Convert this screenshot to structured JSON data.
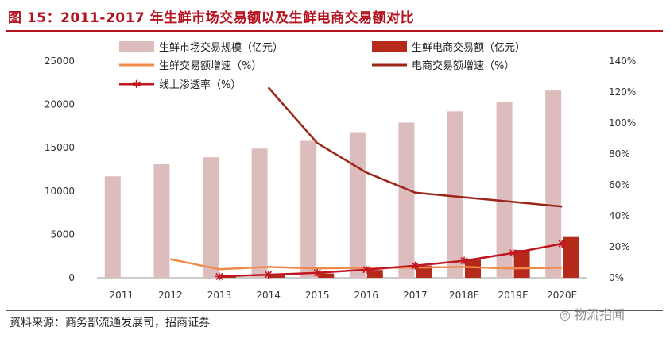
{
  "title": "图 15：2011-2017 年生鲜市场交易额以及生鲜电商交易额对比",
  "source": "资料来源：商务部流通发展司，招商证券",
  "watermark": "物流指闻",
  "colors": {
    "market_bar": "#dcbcbc",
    "ecom_bar": "#b52a1a",
    "market_growth": "#f08a4b",
    "ecom_growth": "#9c2418",
    "penetration": "#c0161f",
    "title": "#b3121f"
  },
  "chart_data": {
    "type": "bar",
    "categories": [
      "2011",
      "2012",
      "2013",
      "2014",
      "2015",
      "2016",
      "2017",
      "2018E",
      "2019E",
      "2020E"
    ],
    "series": [
      {
        "name": "生鲜市场交易规模（亿元）",
        "type": "bar",
        "axis": "left",
        "values": [
          11700,
          13100,
          13900,
          14900,
          15800,
          16800,
          17900,
          19200,
          20300,
          21600
        ]
      },
      {
        "name": "生鲜电商交易额（亿元）",
        "type": "bar",
        "axis": "left",
        "values": [
          0,
          0,
          130,
          290,
          500,
          900,
          1400,
          2100,
          3200,
          4700
        ]
      },
      {
        "name": "生鲜交易额增速（%）",
        "type": "line",
        "axis": "right",
        "values": [
          null,
          12,
          5.5,
          7,
          6,
          6.5,
          6.5,
          7,
          6,
          6.5
        ]
      },
      {
        "name": "电商交易额增速（%）",
        "type": "line",
        "axis": "right",
        "values": [
          null,
          null,
          null,
          123,
          87,
          68,
          55,
          52,
          49,
          46
        ]
      },
      {
        "name": "线上渗透率（%）",
        "type": "line",
        "axis": "right",
        "marker": "star",
        "values": [
          null,
          null,
          0.8,
          2,
          3.2,
          5.3,
          7.8,
          11,
          16,
          22
        ]
      }
    ],
    "yleft": {
      "lim": [
        0,
        25000
      ],
      "ticks": [
        "0",
        "5000",
        "10000",
        "15000",
        "20000",
        "25000"
      ]
    },
    "yright": {
      "lim": [
        0,
        140
      ],
      "ticks": [
        "0%",
        "20%",
        "40%",
        "60%",
        "80%",
        "100%",
        "120%",
        "140%"
      ]
    },
    "legend_position": "top"
  }
}
